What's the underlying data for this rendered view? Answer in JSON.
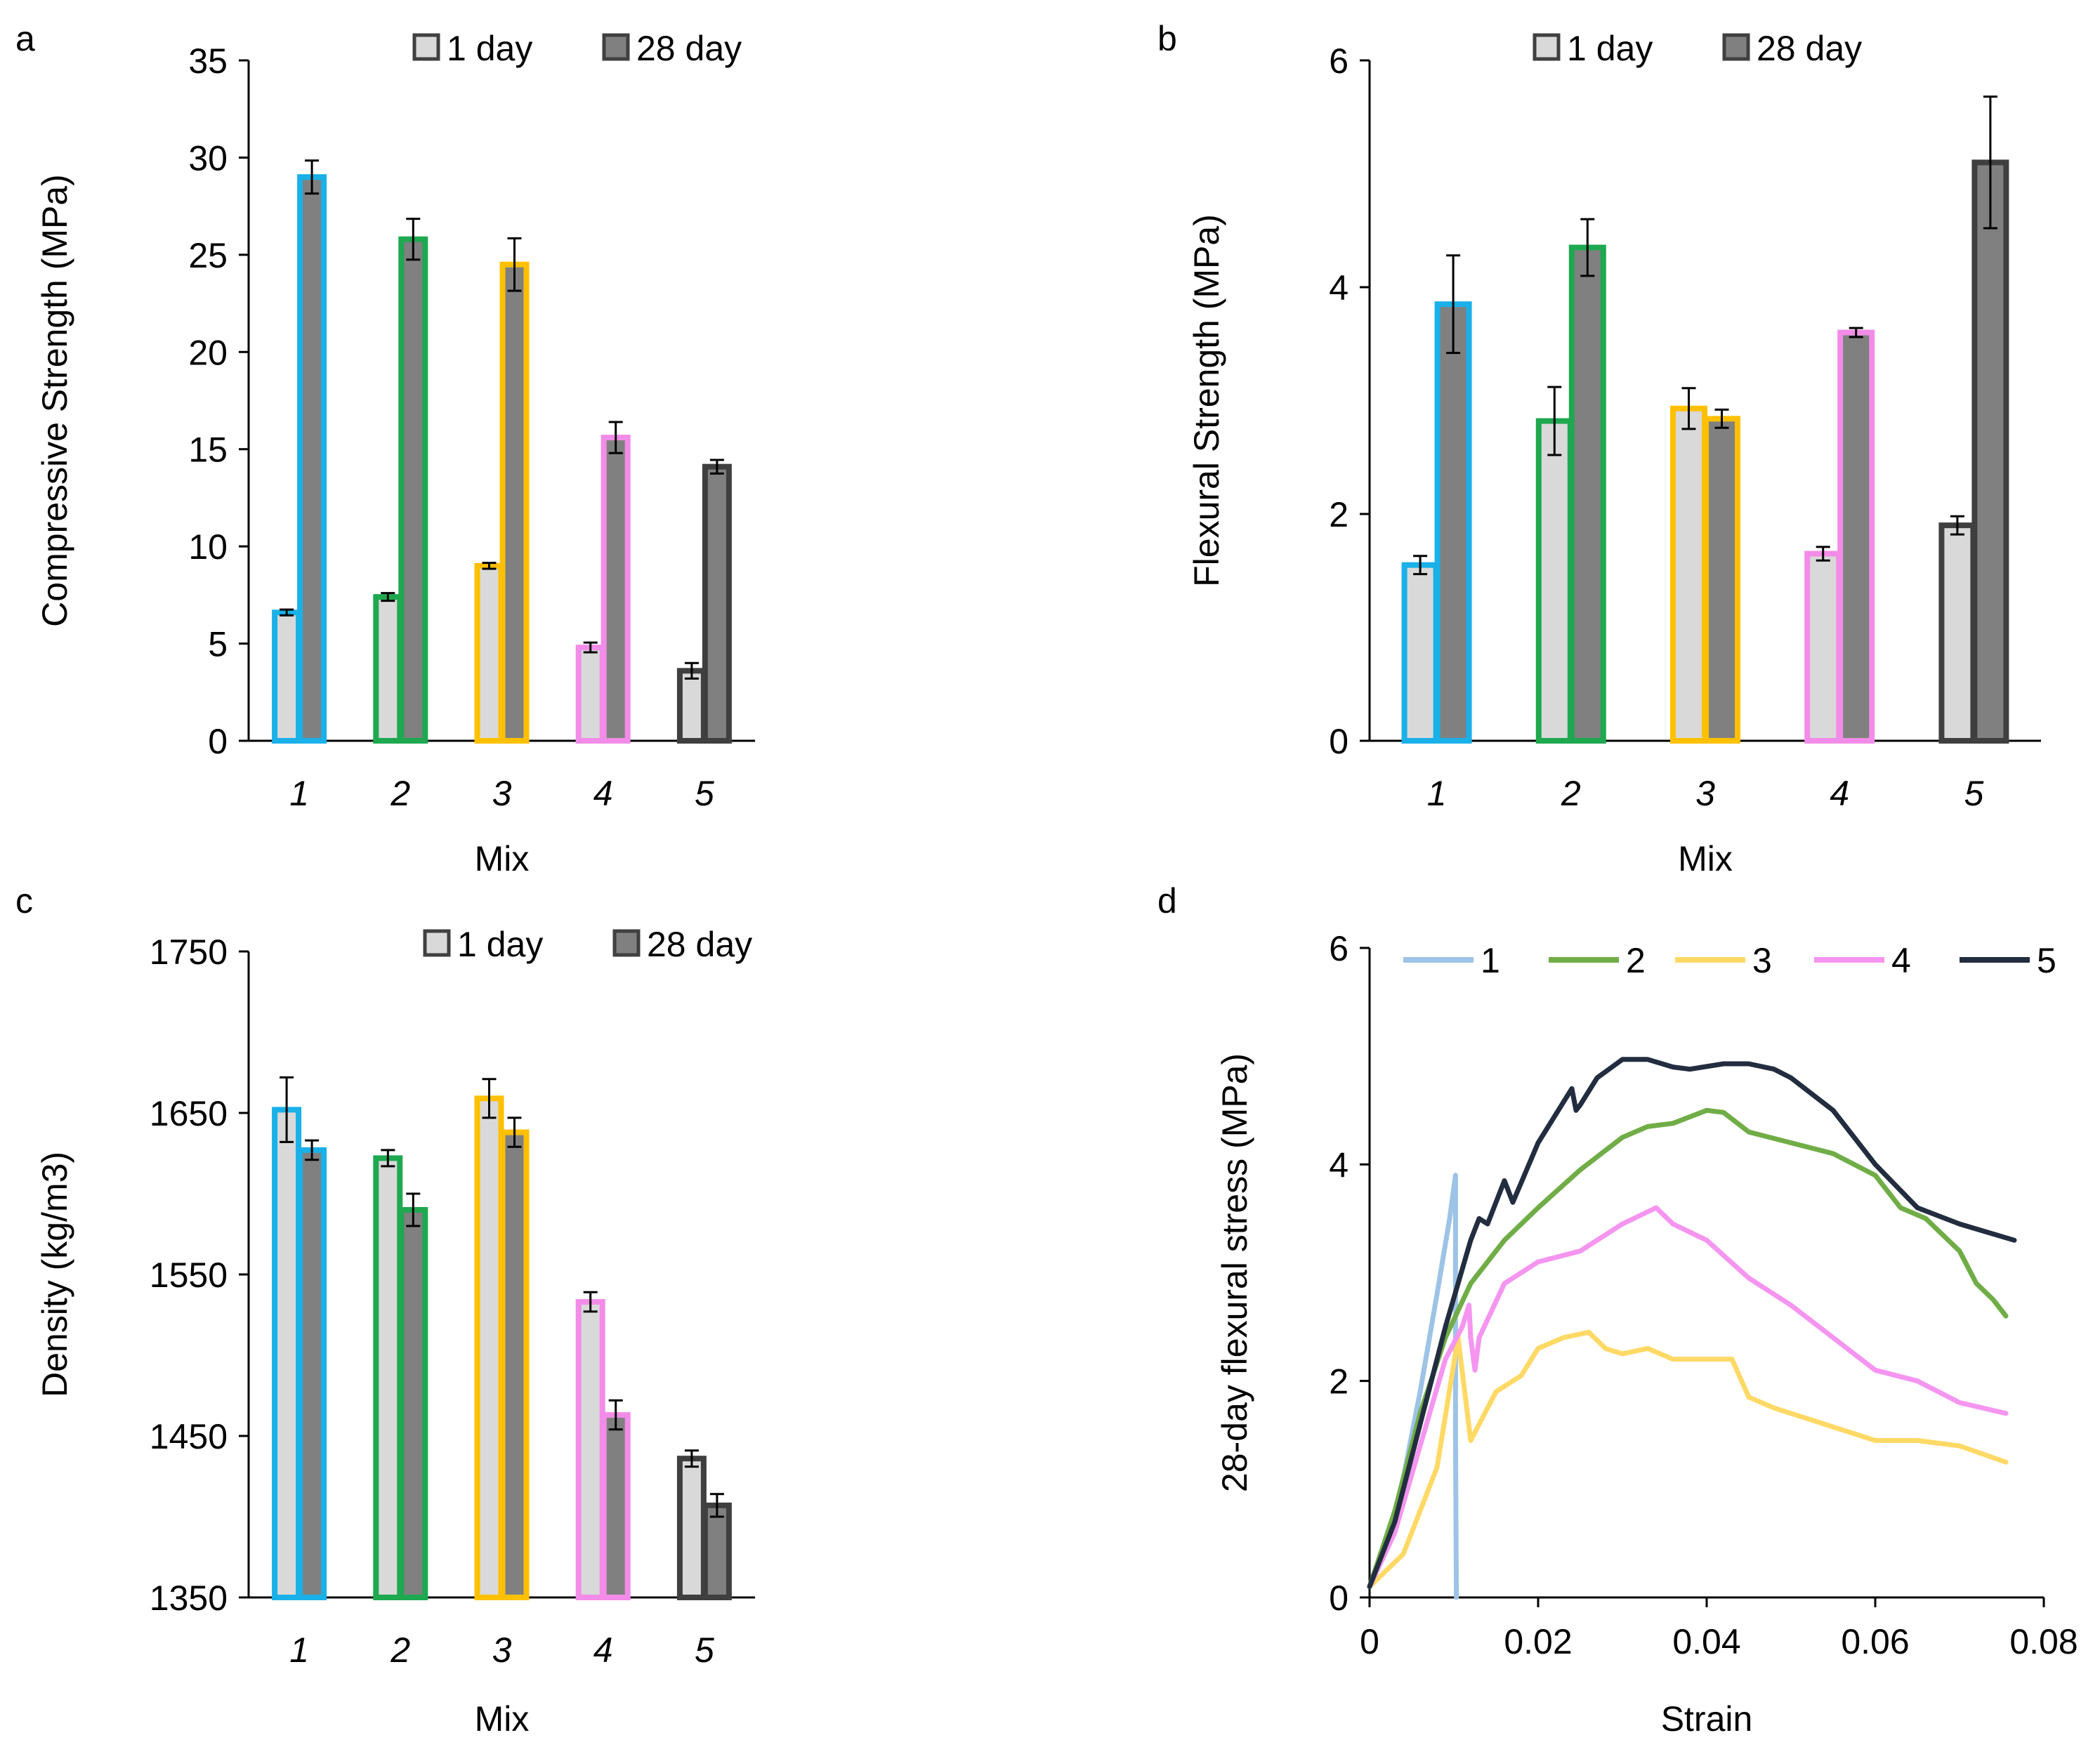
{
  "chart_data": [
    {
      "panel": "a",
      "type": "bar",
      "categories": [
        "1",
        "2",
        "3",
        "4",
        "5"
      ],
      "series": [
        {
          "name": "1 day",
          "values": [
            6.6,
            7.4,
            9.0,
            4.8,
            3.6
          ],
          "errors": [
            0.15,
            0.2,
            0.15,
            0.25,
            0.4
          ]
        },
        {
          "name": "28 day",
          "values": [
            29.0,
            25.8,
            24.5,
            15.6,
            14.1
          ],
          "errors": [
            0.85,
            1.05,
            1.35,
            0.8,
            0.35
          ]
        }
      ],
      "mix_colors": [
        "#1ab0e8",
        "#1ea84f",
        "#ffc000",
        "#f28ce8",
        "#3f3f3f"
      ],
      "xlabel": "Mix",
      "ylabel": "Compressive Strength (MPa)",
      "ylim": [
        0,
        35
      ],
      "yticks": [
        "0",
        "5",
        "10",
        "15",
        "20",
        "25",
        "30",
        "35"
      ],
      "legend_position": "top"
    },
    {
      "panel": "b",
      "type": "bar",
      "categories": [
        "1",
        "2",
        "3",
        "4",
        "5"
      ],
      "series": [
        {
          "name": "1 day",
          "values": [
            1.55,
            2.82,
            2.93,
            1.65,
            1.9
          ],
          "errors": [
            0.08,
            0.3,
            0.18,
            0.06,
            0.08
          ]
        },
        {
          "name": "28 day",
          "values": [
            3.85,
            4.35,
            2.84,
            3.6,
            5.1
          ],
          "errors": [
            0.43,
            0.25,
            0.08,
            0.04,
            0.58
          ]
        }
      ],
      "mix_colors": [
        "#1ab0e8",
        "#1ea84f",
        "#ffc000",
        "#f28ce8",
        "#3f3f3f"
      ],
      "xlabel": "Mix",
      "ylabel": "Flexural Strength (MPa)",
      "ylim": [
        0,
        6
      ],
      "yticks": [
        "0",
        "2",
        "4",
        "6"
      ],
      "legend_position": "top"
    },
    {
      "panel": "c",
      "type": "bar",
      "categories": [
        "1",
        "2",
        "3",
        "4",
        "5"
      ],
      "series": [
        {
          "name": "1 day",
          "values": [
            1652,
            1622,
            1659,
            1533,
            1436
          ],
          "errors": [
            20,
            5,
            12,
            6,
            5
          ]
        },
        {
          "name": "28 day",
          "values": [
            1627,
            1590,
            1638,
            1463,
            1407
          ],
          "errors": [
            6,
            10,
            9,
            9,
            7
          ]
        }
      ],
      "mix_colors": [
        "#1ab0e8",
        "#1ea84f",
        "#ffc000",
        "#f28ce8",
        "#3f3f3f"
      ],
      "xlabel": "Mix",
      "ylabel": "Density (kg/m3)",
      "ylim": [
        1350,
        1750
      ],
      "yticks": [
        "1350",
        "1450",
        "1550",
        "1650",
        "1750"
      ],
      "legend_position": "top"
    },
    {
      "panel": "d",
      "type": "line",
      "xlabel": "Strain",
      "ylabel": "28-day flexural stress (MPa)",
      "xlim": [
        0,
        0.08
      ],
      "ylim": [
        0,
        6
      ],
      "xticks": [
        "0",
        "0.02",
        "0.04",
        "0.06",
        "0.08"
      ],
      "yticks": [
        "0",
        "2",
        "4",
        "6"
      ],
      "legend_position": "top",
      "series": [
        {
          "name": "1",
          "color": "#9dc3e6",
          "x": [
            0,
            0.002,
            0.004,
            0.006,
            0.008,
            0.0095,
            0.0102,
            0.0102,
            0.0103
          ],
          "y": [
            0.1,
            0.5,
            1.1,
            1.9,
            2.8,
            3.5,
            3.9,
            1.5,
            0
          ]
        },
        {
          "name": "2",
          "color": "#70ad47",
          "x": [
            0,
            0.003,
            0.006,
            0.009,
            0.012,
            0.016,
            0.02,
            0.025,
            0.03,
            0.033,
            0.036,
            0.04,
            0.042,
            0.045,
            0.05,
            0.055,
            0.06,
            0.063,
            0.066,
            0.07,
            0.072,
            0.074,
            0.0755
          ],
          "y": [
            0.1,
            0.8,
            1.7,
            2.4,
            2.9,
            3.3,
            3.6,
            3.95,
            4.25,
            4.35,
            4.38,
            4.5,
            4.48,
            4.3,
            4.2,
            4.1,
            3.9,
            3.6,
            3.5,
            3.2,
            2.9,
            2.75,
            2.6
          ]
        },
        {
          "name": "3",
          "color": "#ffd966",
          "x": [
            0,
            0.004,
            0.008,
            0.0105,
            0.012,
            0.015,
            0.018,
            0.02,
            0.023,
            0.026,
            0.028,
            0.03,
            0.033,
            0.036,
            0.04,
            0.043,
            0.045,
            0.048,
            0.052,
            0.056,
            0.06,
            0.065,
            0.07,
            0.0755
          ],
          "y": [
            0.1,
            0.4,
            1.2,
            2.4,
            1.45,
            1.9,
            2.05,
            2.3,
            2.4,
            2.45,
            2.3,
            2.25,
            2.3,
            2.2,
            2.2,
            2.2,
            1.85,
            1.75,
            1.65,
            1.55,
            1.45,
            1.45,
            1.4,
            1.25
          ]
        },
        {
          "name": "4",
          "color": "#f595f0",
          "x": [
            0,
            0.003,
            0.006,
            0.009,
            0.011,
            0.0118,
            0.012,
            0.0125,
            0.013,
            0.016,
            0.02,
            0.025,
            0.03,
            0.034,
            0.036,
            0.04,
            0.045,
            0.05,
            0.055,
            0.06,
            0.065,
            0.07,
            0.0755
          ],
          "y": [
            0.1,
            0.6,
            1.4,
            2.2,
            2.5,
            2.7,
            2.4,
            2.1,
            2.4,
            2.9,
            3.1,
            3.2,
            3.45,
            3.6,
            3.45,
            3.3,
            2.95,
            2.7,
            2.4,
            2.1,
            2.0,
            1.8,
            1.7
          ]
        },
        {
          "name": "5",
          "color": "#222d3f",
          "x": [
            0,
            0.003,
            0.006,
            0.009,
            0.012,
            0.013,
            0.014,
            0.0155,
            0.016,
            0.017,
            0.02,
            0.024,
            0.0245,
            0.025,
            0.027,
            0.03,
            0.033,
            0.036,
            0.038,
            0.042,
            0.045,
            0.048,
            0.05,
            0.055,
            0.06,
            0.065,
            0.07,
            0.0765
          ],
          "y": [
            0.1,
            0.7,
            1.6,
            2.5,
            3.3,
            3.5,
            3.45,
            3.75,
            3.85,
            3.65,
            4.2,
            4.7,
            4.5,
            4.55,
            4.8,
            4.97,
            4.97,
            4.9,
            4.88,
            4.93,
            4.93,
            4.88,
            4.8,
            4.5,
            4.0,
            3.6,
            3.45,
            3.3
          ]
        }
      ]
    }
  ]
}
